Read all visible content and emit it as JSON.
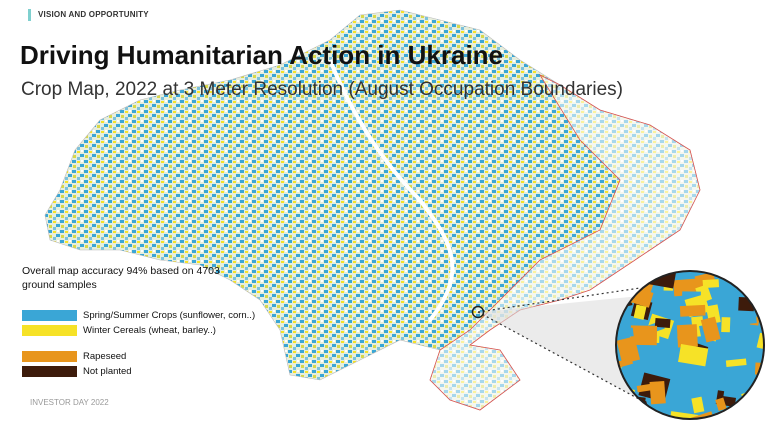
{
  "header": {
    "section": "VISION AND OPPORTUNITY",
    "title": "Driving Humanitarian Action in Ukraine",
    "subtitle": "Crop Map, 2022 at 3 Meter Resolution (August Occupation Boundaries)"
  },
  "accuracy_note": "Overall map accuracy 94% based on 4703 ground samples",
  "legend": [
    {
      "label": "Spring/Summer Crops (sunflower, corn..)",
      "color": "#3aa6d6"
    },
    {
      "label": "Winter Cereals (wheat, barley..)",
      "color": "#f6e227"
    },
    {
      "label": "Rapeseed",
      "color": "#e8951c"
    },
    {
      "label": "Not planted",
      "color": "#3d1b0b"
    }
  ],
  "footer": "INVESTOR DAY 2022"
}
